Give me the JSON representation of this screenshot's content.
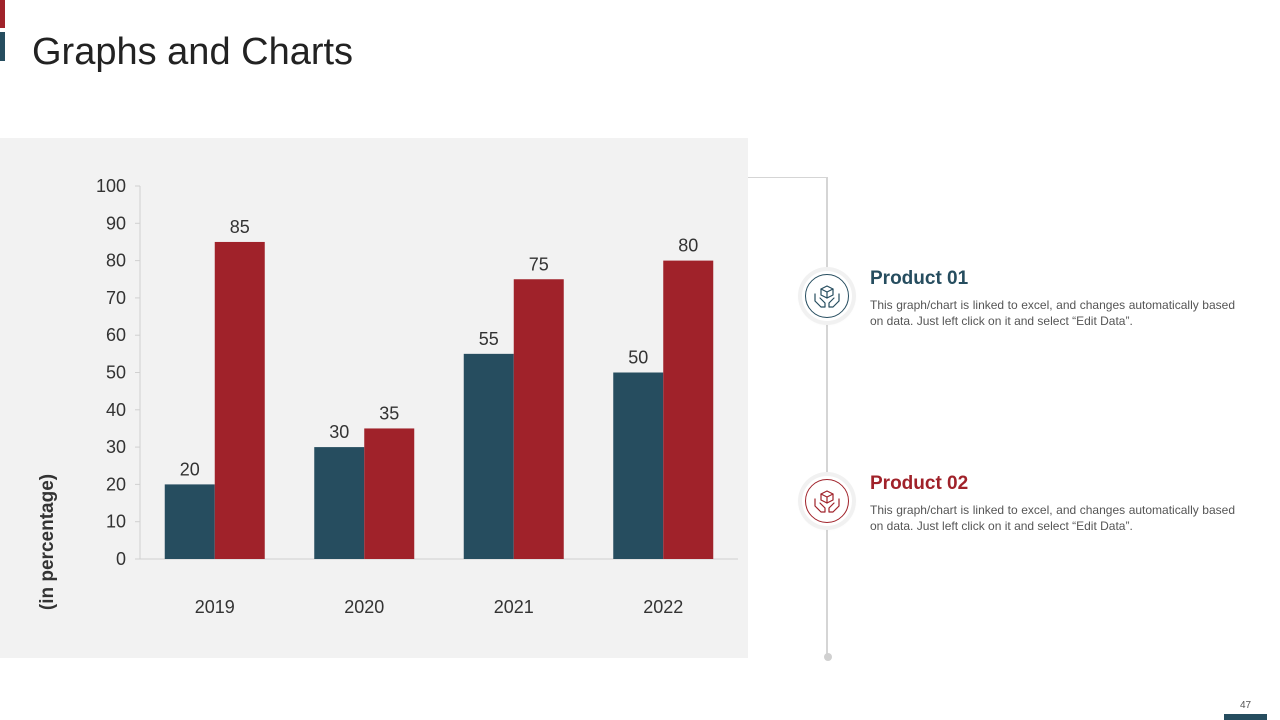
{
  "slide": {
    "title": "Graphs and Charts",
    "page_number": "47"
  },
  "colors": {
    "series1": "#264d5f",
    "series2": "#a0222a",
    "panel": "#f2f2f2"
  },
  "chart_data": {
    "type": "bar",
    "title": "",
    "xlabel": "",
    "ylabel": "(in percentage)",
    "ylim": [
      0,
      100
    ],
    "yticks": [
      0,
      10,
      20,
      30,
      40,
      50,
      60,
      70,
      80,
      90,
      100
    ],
    "categories": [
      "2019",
      "2020",
      "2021",
      "2022"
    ],
    "series": [
      {
        "name": "Product 01",
        "values": [
          20,
          30,
          55,
          50
        ]
      },
      {
        "name": "Product 02",
        "values": [
          85,
          35,
          75,
          80
        ]
      }
    ],
    "data_labels": true,
    "grid": false
  },
  "products": [
    {
      "title": "Product 01",
      "description": "This graph/chart is linked to excel, and changes automatically based on data. Just left click on it and select “Edit Data”.",
      "icon": "hands-box-icon"
    },
    {
      "title": "Product 02",
      "description": "This graph/chart is linked to excel, and changes automatically based on data. Just left click on it and select “Edit Data”.",
      "icon": "hands-box-icon"
    }
  ]
}
